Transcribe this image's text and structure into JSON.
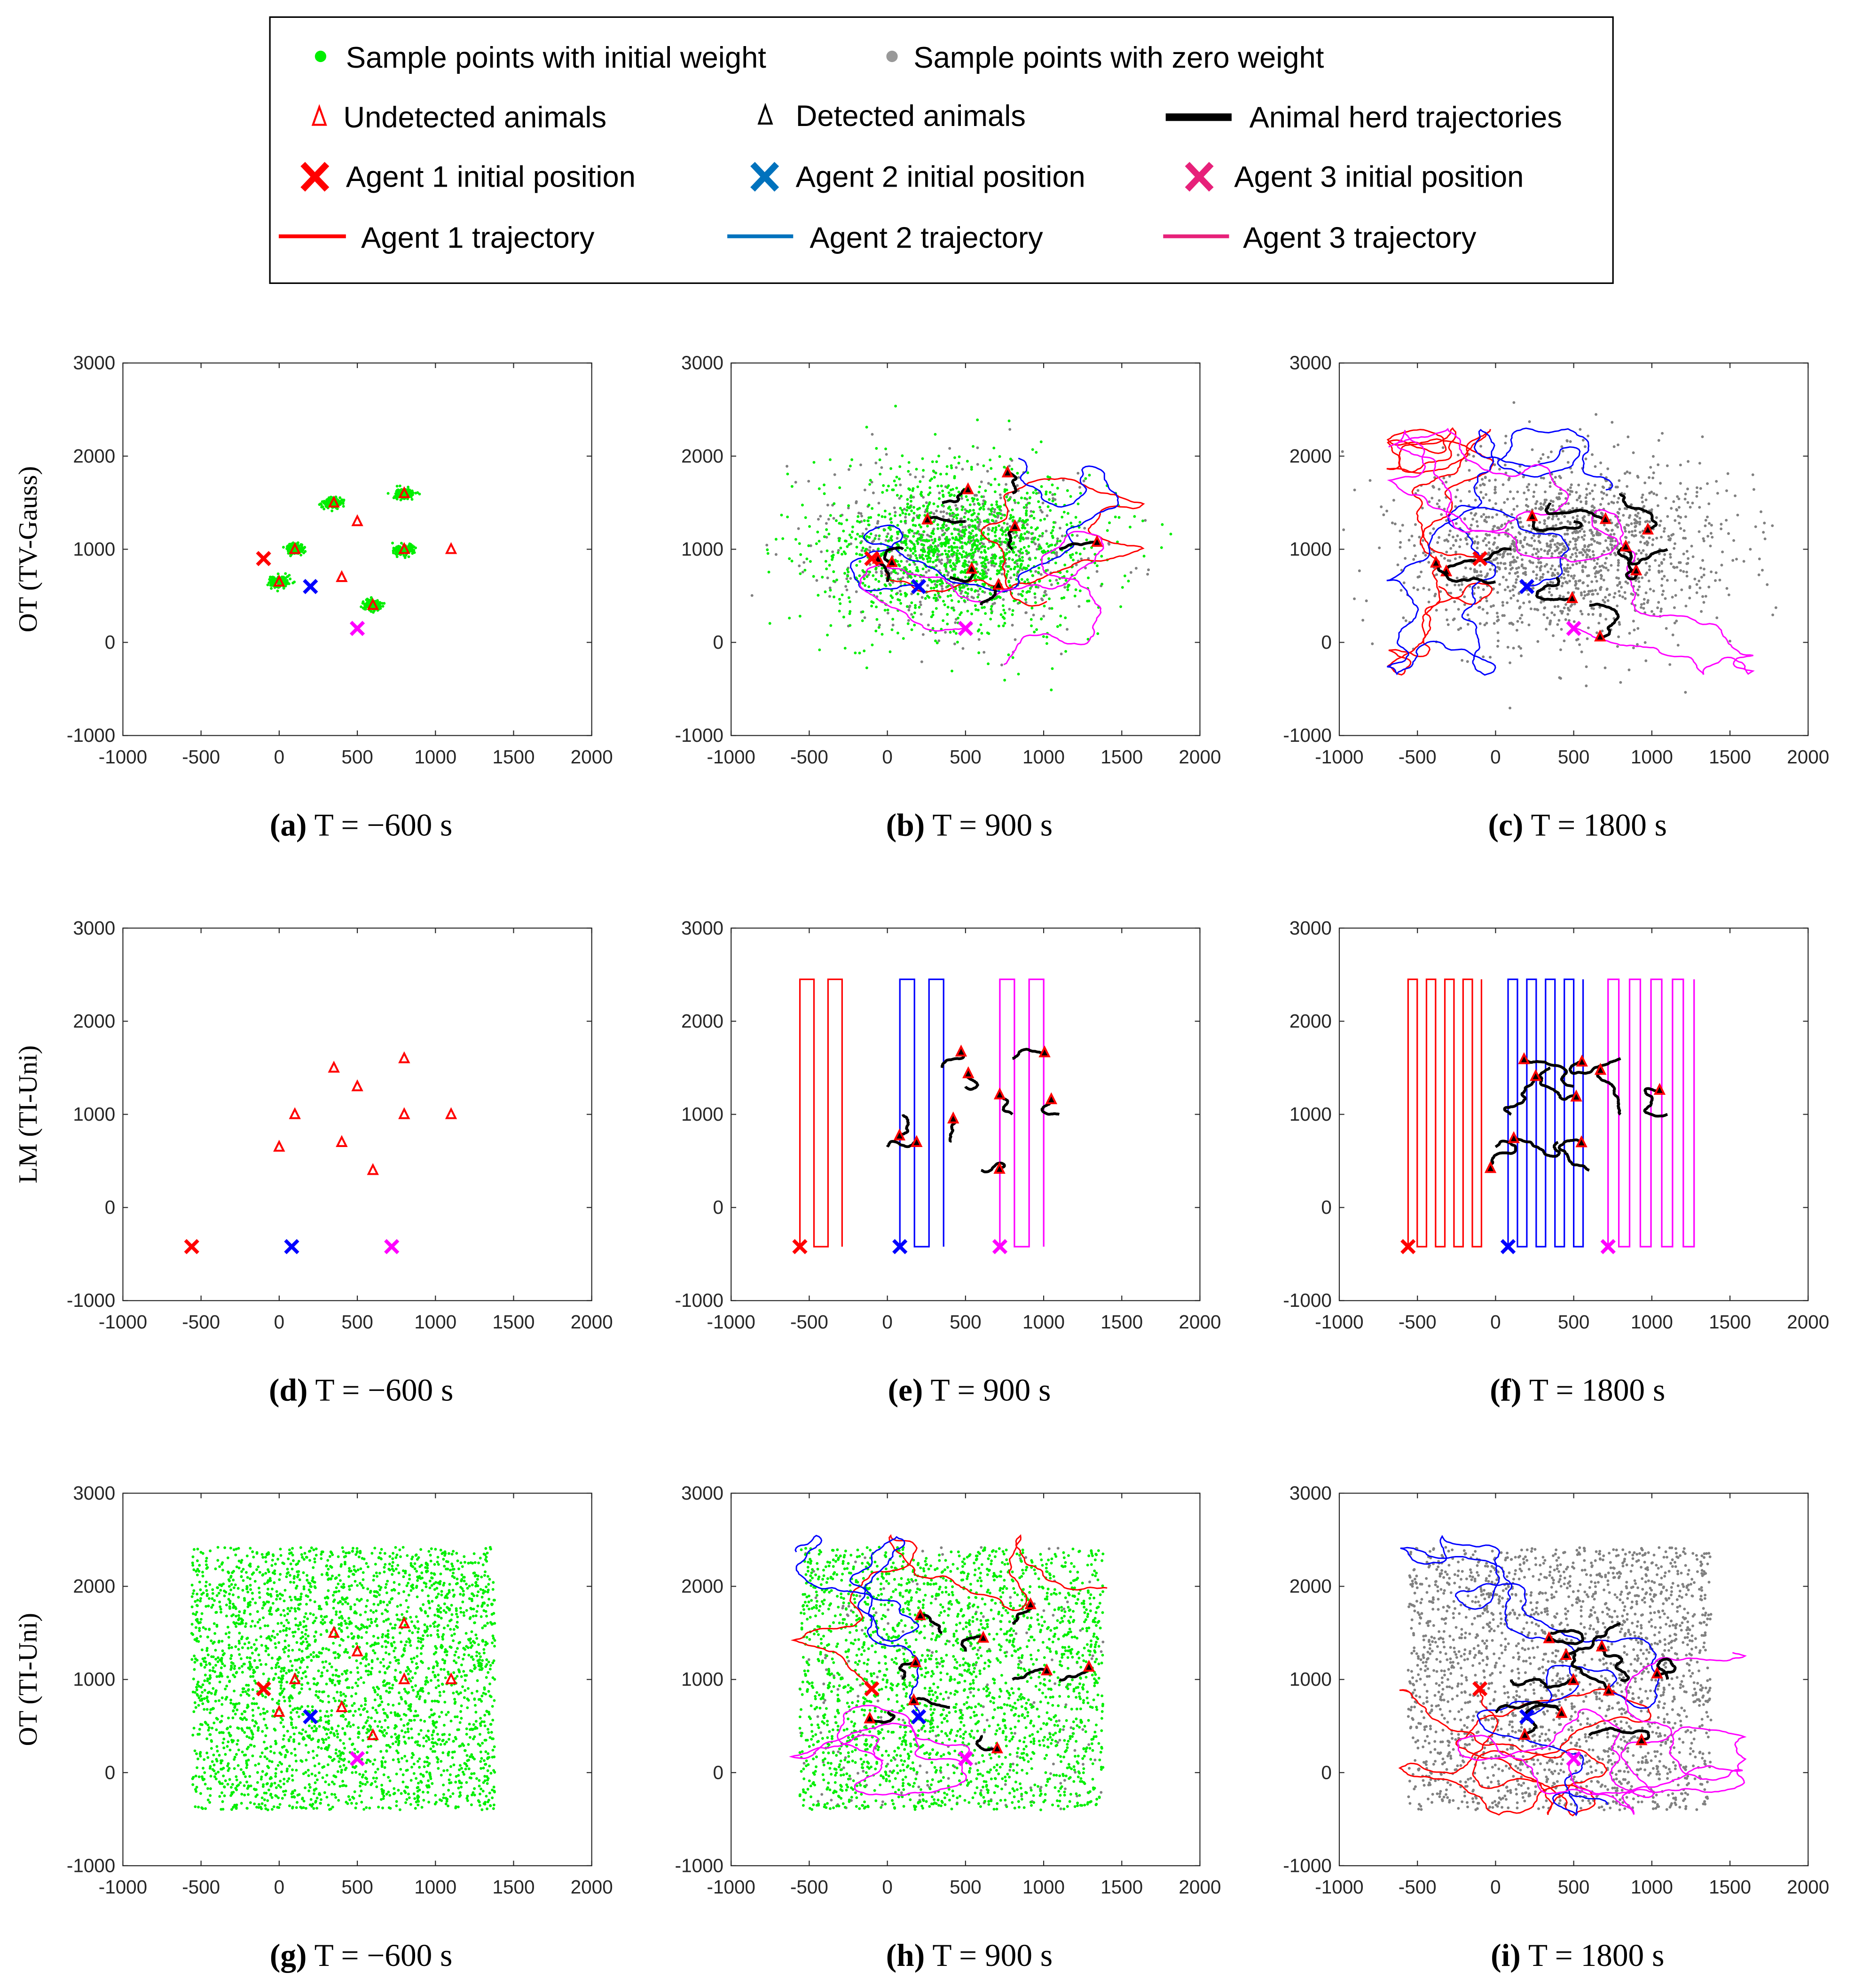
{
  "legend": {
    "items": [
      {
        "label": "Sample points with initial weight",
        "marker": "dot",
        "color": "#00ee00"
      },
      {
        "label": "Sample points with zero weight",
        "marker": "dot",
        "color": "#999999"
      },
      {
        "label": "Undetected animals",
        "marker": "triangle",
        "color": "#ff0000"
      },
      {
        "label": "Detected animals",
        "marker": "triangle",
        "color": "#000000"
      },
      {
        "label": "Animal herd trajectories",
        "marker": "line",
        "color": "#000000"
      },
      {
        "label": "Agent 1 initial position",
        "marker": "x",
        "color": "#ff0000"
      },
      {
        "label": "Agent 2 initial position",
        "marker": "x",
        "color": "#0072bd"
      },
      {
        "label": "Agent 3 initial position",
        "marker": "x",
        "color": "#e7217a"
      },
      {
        "label": "Agent 1 trajectory",
        "marker": "line",
        "color": "#ff0000"
      },
      {
        "label": "Agent 2 trajectory",
        "marker": "line",
        "color": "#0072bd"
      },
      {
        "label": "Agent 3 trajectory",
        "marker": "line",
        "color": "#e7217a"
      }
    ]
  },
  "chart_data": {
    "type": "scatter",
    "axes": {
      "xlim": [
        -1000,
        2000
      ],
      "ylim": [
        -1000,
        3000
      ],
      "xticks": [
        "-1000",
        "-500",
        "0",
        "500",
        "1000",
        "1500",
        "2000"
      ],
      "yticks": [
        "-1000",
        "0",
        "1000",
        "2000",
        "3000"
      ],
      "grid": false
    },
    "colors": {
      "green": "#00ee00",
      "grey": "#808080",
      "animal": "#ff0000",
      "herd": "#000000",
      "agents": [
        "#ff0000",
        "#0000ff",
        "#ff00ff"
      ]
    },
    "animals": [
      [
        350,
        1500
      ],
      [
        800,
        1600
      ],
      [
        500,
        1300
      ],
      [
        100,
        1000
      ],
      [
        800,
        1000
      ],
      [
        1100,
        1000
      ],
      [
        0,
        650
      ],
      [
        400,
        700
      ],
      [
        600,
        400
      ]
    ],
    "agents_init": {
      "OT": [
        [
          -100,
          900
        ],
        [
          200,
          600
        ],
        [
          500,
          150
        ]
      ],
      "LM": [
        [
          -560,
          -420
        ],
        [
          80,
          -420
        ],
        [
          720,
          -420
        ]
      ]
    },
    "row_labels": [
      "OT (TV-Gauss)",
      "LM (TI-Uni)",
      "OT (TI-Uni)"
    ],
    "panels": [
      {
        "label": "(a)",
        "caption": "T = −600 s",
        "method": "OT",
        "prior": "gauss",
        "time": -600,
        "green": 900,
        "grey": 0
      },
      {
        "label": "(b)",
        "caption": "T = 900 s",
        "method": "OT",
        "prior": "gauss",
        "time": 900,
        "green": 1400,
        "grey": 600
      },
      {
        "label": "(c)",
        "caption": "T = 1800 s",
        "method": "OT",
        "prior": "gauss",
        "time": 1800,
        "green": 0,
        "grey": 1500
      },
      {
        "label": "(d)",
        "caption": "T = −600 s",
        "method": "LM",
        "prior": "uni",
        "time": -600,
        "green": 0,
        "grey": 0
      },
      {
        "label": "(e)",
        "caption": "T = 900 s",
        "method": "LM",
        "prior": "uni",
        "time": 900,
        "green": 0,
        "grey": 0,
        "lawnmower": [
          [
            -560,
            -290,
            4
          ],
          [
            80,
            360,
            4
          ],
          [
            720,
            1000,
            4
          ]
        ]
      },
      {
        "label": "(f)",
        "caption": "T = 1800 s",
        "method": "LM",
        "prior": "uni",
        "time": 1800,
        "green": 0,
        "grey": 0,
        "lawnmower": [
          [
            -560,
            -90,
            9
          ],
          [
            80,
            560,
            9
          ],
          [
            720,
            1270,
            9
          ]
        ]
      },
      {
        "label": "(g)",
        "caption": "T = −600 s",
        "method": "OT",
        "prior": "uni",
        "time": -600,
        "green": 3000,
        "grey": 0
      },
      {
        "label": "(h)",
        "caption": "T = 900 s",
        "method": "OT",
        "prior": "uni",
        "time": 900,
        "green": 2300,
        "grey": 200
      },
      {
        "label": "(i)",
        "caption": "T = 1800 s",
        "method": "OT",
        "prior": "uni",
        "time": 1800,
        "green": 0,
        "grey": 2200
      }
    ]
  }
}
